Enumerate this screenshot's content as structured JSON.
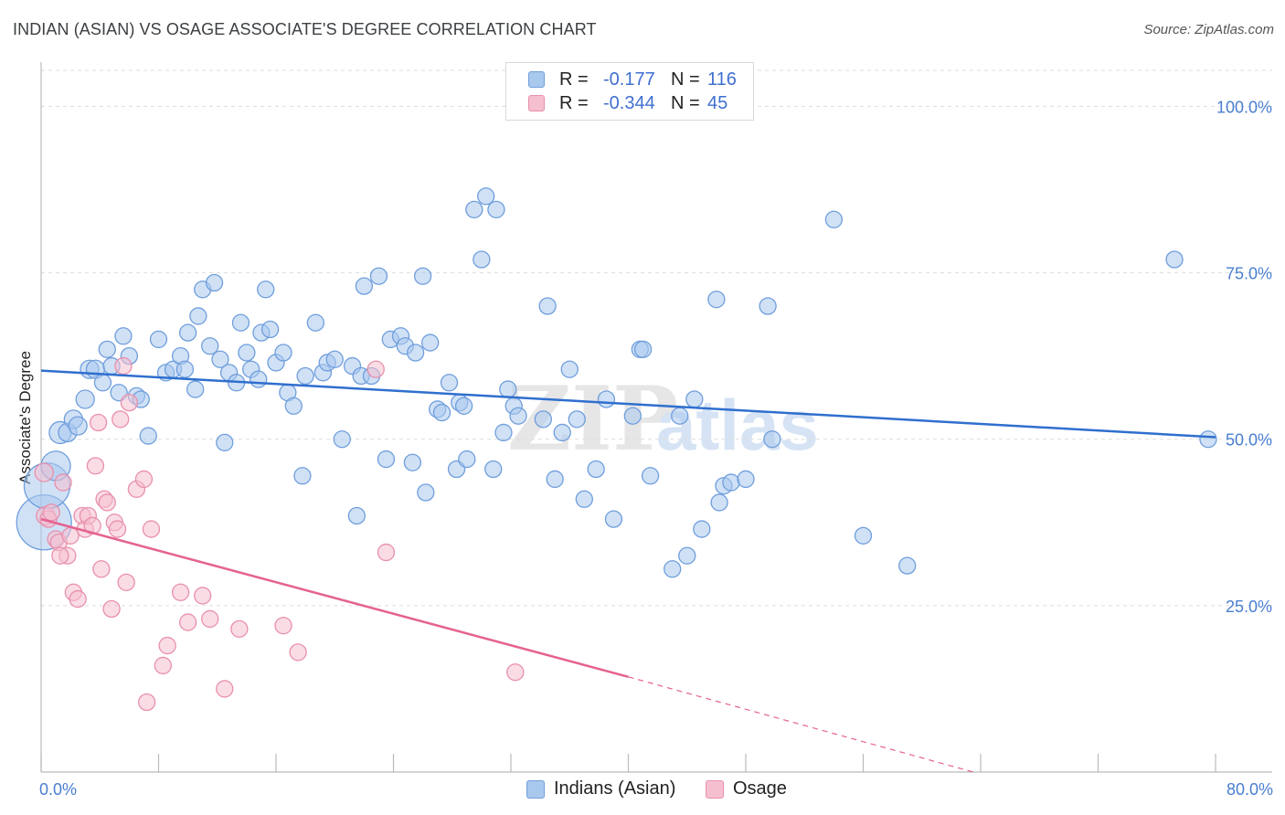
{
  "title": "INDIAN (ASIAN) VS OSAGE ASSOCIATE'S DEGREE CORRELATION CHART",
  "source": "Source: ZipAtlas.com",
  "watermark": {
    "zip": "ZIP",
    "atlas": "atlas"
  },
  "colors": {
    "blue_fill": "#a9c8ee",
    "blue_stroke": "#6f9edc",
    "blue_line": "#2f6fce",
    "pink_fill": "#f6bfd0",
    "pink_stroke": "#e890ac",
    "pink_line": "#e5638f",
    "tick_text": "#4a7fd0",
    "grid": "#dddddd"
  },
  "legend": {
    "rows": [
      {
        "r_label": "R =",
        "r_value": "-0.177",
        "n_label": "N =",
        "n_value": "116"
      },
      {
        "r_label": "R =",
        "r_value": "-0.344",
        "n_label": "N =",
        "n_value": "45"
      }
    ]
  },
  "bottom_legend": [
    "Indians (Asian)",
    "Osage"
  ],
  "chart_data": {
    "type": "scatter",
    "title": "INDIAN (ASIAN) VS OSAGE ASSOCIATE'S DEGREE CORRELATION CHART",
    "xlabel": "",
    "ylabel": "Associate's Degree",
    "xlim": [
      0,
      80
    ],
    "ylim": [
      0,
      105
    ],
    "x_tick_labels": [
      "0.0%",
      "80.0%"
    ],
    "y_ticks": [
      25,
      50,
      75,
      100
    ],
    "y_tick_labels": [
      "25.0%",
      "50.0%",
      "75.0%",
      "100.0%"
    ],
    "grid": true,
    "legend_position": "top-center",
    "series": [
      {
        "name": "Indians (Asian)",
        "color": "#a9c8ee",
        "trend": {
          "x": [
            0,
            80
          ],
          "y": [
            60.3,
            50.3
          ],
          "style": "solid"
        },
        "points": [
          [
            0.2,
            37.5,
            30
          ],
          [
            0.4,
            43.0,
            25
          ],
          [
            1.0,
            46.0,
            16
          ],
          [
            1.3,
            51.0,
            12
          ],
          [
            1.8,
            51.0,
            10
          ],
          [
            2.2,
            53.0,
            10
          ],
          [
            2.5,
            52.0,
            10
          ],
          [
            3.0,
            56.0,
            10
          ],
          [
            3.3,
            60.5,
            10
          ],
          [
            3.7,
            60.5,
            10
          ],
          [
            4.2,
            58.5,
            9
          ],
          [
            4.5,
            63.5,
            9
          ],
          [
            4.8,
            61.0,
            9
          ],
          [
            5.3,
            57.0,
            9
          ],
          [
            5.6,
            65.5,
            9
          ],
          [
            6.0,
            62.5,
            9
          ],
          [
            6.5,
            56.5,
            9
          ],
          [
            6.8,
            56.0,
            9
          ],
          [
            7.3,
            50.5,
            9
          ],
          [
            8.0,
            65.0,
            9
          ],
          [
            8.5,
            60.0,
            9
          ],
          [
            9.0,
            60.5,
            9
          ],
          [
            9.5,
            62.5,
            9
          ],
          [
            9.8,
            60.5,
            9
          ],
          [
            10.0,
            66.0,
            9
          ],
          [
            10.5,
            57.5,
            9
          ],
          [
            10.7,
            68.5,
            9
          ],
          [
            11.0,
            72.5,
            9
          ],
          [
            11.5,
            64.0,
            9
          ],
          [
            11.8,
            73.5,
            9
          ],
          [
            12.2,
            62.0,
            9
          ],
          [
            12.5,
            49.5,
            9
          ],
          [
            12.8,
            60.0,
            9
          ],
          [
            13.3,
            58.5,
            9
          ],
          [
            13.6,
            67.5,
            9
          ],
          [
            14.0,
            63.0,
            9
          ],
          [
            14.3,
            60.5,
            9
          ],
          [
            14.8,
            59.0,
            9
          ],
          [
            15.0,
            66.0,
            9
          ],
          [
            15.3,
            72.5,
            9
          ],
          [
            15.6,
            66.5,
            9
          ],
          [
            16.0,
            61.5,
            9
          ],
          [
            16.5,
            63.0,
            9
          ],
          [
            16.8,
            57.0,
            9
          ],
          [
            17.2,
            55.0,
            9
          ],
          [
            17.8,
            44.5,
            9
          ],
          [
            18.0,
            59.5,
            9
          ],
          [
            18.7,
            67.5,
            9
          ],
          [
            19.2,
            60.0,
            9
          ],
          [
            19.5,
            61.5,
            9
          ],
          [
            20.0,
            62.0,
            9
          ],
          [
            20.5,
            50.0,
            9
          ],
          [
            21.2,
            61.0,
            9
          ],
          [
            21.5,
            38.5,
            9
          ],
          [
            21.8,
            59.5,
            9
          ],
          [
            22.0,
            73.0,
            9
          ],
          [
            22.5,
            59.5,
            9
          ],
          [
            23.0,
            74.5,
            9
          ],
          [
            23.5,
            47.0,
            9
          ],
          [
            23.8,
            65.0,
            9
          ],
          [
            24.5,
            65.5,
            9
          ],
          [
            24.8,
            64.0,
            9
          ],
          [
            25.3,
            46.5,
            9
          ],
          [
            25.5,
            63.0,
            9
          ],
          [
            26.0,
            74.5,
            9
          ],
          [
            26.2,
            42.0,
            9
          ],
          [
            26.5,
            64.5,
            9
          ],
          [
            27.0,
            54.5,
            9
          ],
          [
            27.3,
            54.0,
            9
          ],
          [
            27.8,
            58.5,
            9
          ],
          [
            28.3,
            45.5,
            9
          ],
          [
            28.5,
            55.5,
            9
          ],
          [
            28.8,
            55.0,
            9
          ],
          [
            29.0,
            47.0,
            9
          ],
          [
            29.5,
            84.5,
            9
          ],
          [
            30.0,
            77.0,
            9
          ],
          [
            30.3,
            86.5,
            9
          ],
          [
            30.8,
            45.5,
            9
          ],
          [
            31.0,
            84.5,
            9
          ],
          [
            31.5,
            51.0,
            9
          ],
          [
            31.8,
            57.5,
            9
          ],
          [
            32.2,
            55.0,
            9
          ],
          [
            32.5,
            53.5,
            9
          ],
          [
            34.2,
            53.0,
            9
          ],
          [
            34.5,
            70.0,
            9
          ],
          [
            35.0,
            44.0,
            9
          ],
          [
            35.5,
            51.0,
            9
          ],
          [
            36.0,
            60.5,
            9
          ],
          [
            36.5,
            53.0,
            9
          ],
          [
            37.0,
            41.0,
            9
          ],
          [
            37.8,
            45.5,
            9
          ],
          [
            38.5,
            56.0,
            9
          ],
          [
            39.0,
            38.0,
            9
          ],
          [
            40.3,
            53.5,
            9
          ],
          [
            40.8,
            63.5,
            9
          ],
          [
            41.0,
            63.5,
            9
          ],
          [
            41.5,
            44.5,
            9
          ],
          [
            43.0,
            30.5,
            9
          ],
          [
            43.5,
            53.5,
            9
          ],
          [
            44.0,
            32.5,
            9
          ],
          [
            44.5,
            56.0,
            9
          ],
          [
            45.0,
            36.5,
            9
          ],
          [
            46.0,
            71.0,
            9
          ],
          [
            46.2,
            40.5,
            9
          ],
          [
            46.5,
            43.0,
            9
          ],
          [
            47.0,
            43.5,
            9
          ],
          [
            48.0,
            44.0,
            9
          ],
          [
            49.5,
            70.0,
            9
          ],
          [
            49.8,
            50.0,
            9
          ],
          [
            54.0,
            83.0,
            9
          ],
          [
            56.0,
            35.5,
            9
          ],
          [
            59.0,
            31.0,
            9
          ],
          [
            77.2,
            77.0,
            9
          ],
          [
            79.5,
            50.0,
            9
          ]
        ]
      },
      {
        "name": "Osage",
        "color": "#f6bfd0",
        "trend": {
          "x": [
            0,
            40
          ],
          "y": [
            38.0,
            14.3
          ],
          "style": "solid",
          "extended_dashed_to": [
            63.5,
            0
          ]
        },
        "points": [
          [
            0.2,
            45.0,
            10
          ],
          [
            0.3,
            38.5,
            10
          ],
          [
            0.5,
            38.0,
            9
          ],
          [
            0.7,
            39.0,
            9
          ],
          [
            1.0,
            35.0,
            9
          ],
          [
            1.2,
            34.5,
            9
          ],
          [
            1.5,
            43.5,
            9
          ],
          [
            1.8,
            32.5,
            9
          ],
          [
            2.0,
            35.5,
            9
          ],
          [
            2.2,
            27.0,
            9
          ],
          [
            2.5,
            26.0,
            9
          ],
          [
            2.8,
            38.5,
            9
          ],
          [
            3.0,
            36.5,
            9
          ],
          [
            3.2,
            38.5,
            9
          ],
          [
            3.5,
            37.0,
            9
          ],
          [
            3.7,
            46.0,
            9
          ],
          [
            3.9,
            52.5,
            9
          ],
          [
            4.1,
            30.5,
            9
          ],
          [
            4.3,
            41.0,
            9
          ],
          [
            4.5,
            40.5,
            9
          ],
          [
            4.8,
            24.5,
            9
          ],
          [
            5.0,
            37.5,
            9
          ],
          [
            5.2,
            36.5,
            9
          ],
          [
            5.4,
            53.0,
            9
          ],
          [
            5.6,
            61.0,
            9
          ],
          [
            5.8,
            28.5,
            9
          ],
          [
            6.0,
            55.5,
            9
          ],
          [
            6.5,
            42.5,
            9
          ],
          [
            7.0,
            44.0,
            9
          ],
          [
            7.2,
            10.5,
            9
          ],
          [
            7.5,
            36.5,
            9
          ],
          [
            8.3,
            16.0,
            9
          ],
          [
            8.6,
            19.0,
            9
          ],
          [
            9.5,
            27.0,
            9
          ],
          [
            10.0,
            22.5,
            9
          ],
          [
            11.0,
            26.5,
            9
          ],
          [
            11.5,
            23.0,
            9
          ],
          [
            12.5,
            12.5,
            9
          ],
          [
            13.5,
            21.5,
            9
          ],
          [
            16.5,
            22.0,
            9
          ],
          [
            17.5,
            18.0,
            9
          ],
          [
            22.8,
            60.5,
            9
          ],
          [
            23.5,
            33.0,
            9
          ],
          [
            32.3,
            15.0,
            9
          ],
          [
            1.3,
            32.5,
            9
          ]
        ]
      }
    ]
  }
}
